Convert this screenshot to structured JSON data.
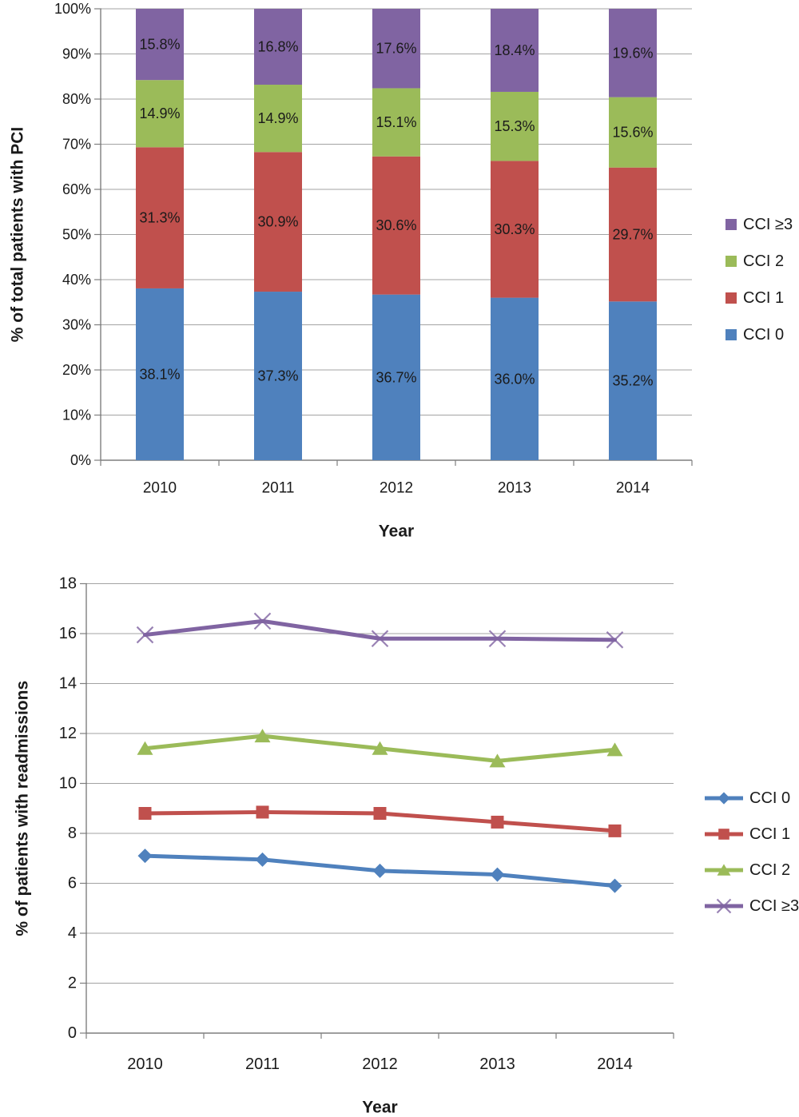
{
  "figure": {
    "background": "#ffffff",
    "text_color": "#1a1a1a",
    "grid_color": "#a3a3a3",
    "axis_color": "#7f7f7f"
  },
  "chart_data": [
    {
      "type": "bar",
      "stacked": true,
      "percent_stacked": true,
      "title": "",
      "xlabel": "Year",
      "ylabel": "% of total patients with PCI",
      "categories": [
        "2010",
        "2011",
        "2012",
        "2013",
        "2014"
      ],
      "series": [
        {
          "name": "CCI 0",
          "color": "#4F81BD",
          "values": [
            38.1,
            37.3,
            36.7,
            36.0,
            35.2
          ],
          "labels": [
            "38.1%",
            "37.3%",
            "36.7%",
            "36.0%",
            "35.2%"
          ]
        },
        {
          "name": "CCI 1",
          "color": "#C0504D",
          "values": [
            31.3,
            30.9,
            30.6,
            30.3,
            29.7
          ],
          "labels": [
            "31.3%",
            "30.9%",
            "30.6%",
            "30.3%",
            "29.7%"
          ]
        },
        {
          "name": "CCI 2",
          "color": "#9BBB59",
          "values": [
            14.9,
            14.9,
            15.1,
            15.3,
            15.6
          ],
          "labels": [
            "14.9%",
            "14.9%",
            "15.1%",
            "15.3%",
            "15.6%"
          ]
        },
        {
          "name": "CCI ≥3",
          "color": "#8064A2",
          "values": [
            15.8,
            16.8,
            17.6,
            18.4,
            19.6
          ],
          "labels": [
            "15.8%",
            "16.8%",
            "17.6%",
            "18.4%",
            "19.6%"
          ]
        }
      ],
      "ylim": [
        0,
        100
      ],
      "ytick_step": 10,
      "ytick_labels": [
        "0%",
        "10%",
        "20%",
        "30%",
        "40%",
        "50%",
        "60%",
        "70%",
        "80%",
        "90%",
        "100%"
      ],
      "grid": true,
      "legend_position": "right",
      "legend_entries": [
        "CCI ≥3",
        "CCI 2",
        "CCI 1",
        "CCI 0"
      ]
    },
    {
      "type": "line",
      "title": "",
      "xlabel": "Year",
      "ylabel": "% of patients with readmissions",
      "categories": [
        "2010",
        "2011",
        "2012",
        "2013",
        "2014"
      ],
      "series": [
        {
          "name": "CCI 0",
          "color": "#4F81BD",
          "marker": "diamond",
          "values": [
            7.1,
            6.95,
            6.5,
            6.35,
            5.9
          ]
        },
        {
          "name": "CCI 1",
          "color": "#C0504D",
          "marker": "square",
          "values": [
            8.8,
            8.85,
            8.8,
            8.45,
            8.1
          ]
        },
        {
          "name": "CCI 2",
          "color": "#9BBB59",
          "marker": "triangle",
          "values": [
            11.4,
            11.9,
            11.4,
            10.9,
            11.35
          ]
        },
        {
          "name": "CCI ≥3",
          "color": "#8064A2",
          "marker": "x",
          "values": [
            15.95,
            16.5,
            15.8,
            15.8,
            15.75
          ]
        }
      ],
      "ylim": [
        0,
        18
      ],
      "ytick_step": 2,
      "ytick_labels": [
        "0",
        "2",
        "4",
        "6",
        "8",
        "10",
        "12",
        "14",
        "16",
        "18"
      ],
      "grid": true,
      "legend_position": "right",
      "legend_entries": [
        "CCI 0",
        "CCI 1",
        "CCI 2",
        "CCI ≥3"
      ]
    }
  ]
}
